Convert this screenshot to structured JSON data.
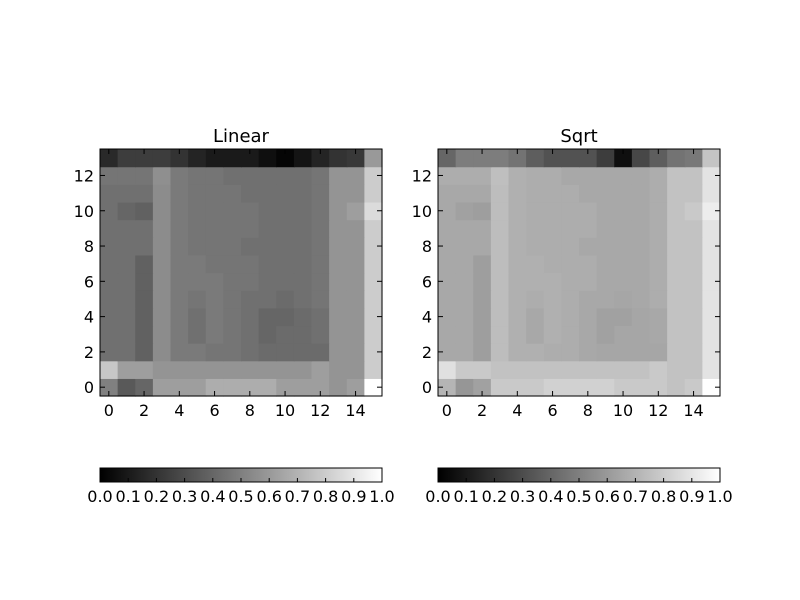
{
  "chart_data": [
    {
      "type": "heatmap",
      "title": "Linear",
      "xlabel": "",
      "ylabel": "",
      "x": [
        0,
        1,
        2,
        3,
        4,
        5,
        6,
        7,
        8,
        9,
        10,
        11,
        12,
        13,
        14,
        15
      ],
      "y": [
        0,
        1,
        2,
        3,
        4,
        5,
        6,
        7,
        8,
        9,
        10,
        11,
        12,
        13
      ],
      "xlim": [
        -0.5,
        15.5
      ],
      "ylim": [
        -0.5,
        13.5
      ],
      "xticks": [
        "0",
        "2",
        "4",
        "6",
        "8",
        "10",
        "12",
        "14"
      ],
      "yticks": [
        "0",
        "2",
        "4",
        "6",
        "8",
        "10",
        "12"
      ],
      "values": [
        [
          0.5,
          0.35,
          0.4,
          0.62,
          0.62,
          0.62,
          0.68,
          0.68,
          0.68,
          0.68,
          0.62,
          0.62,
          0.62,
          0.58,
          0.62,
          1.0
        ],
        [
          0.78,
          0.62,
          0.62,
          0.58,
          0.58,
          0.58,
          0.58,
          0.58,
          0.58,
          0.58,
          0.58,
          0.58,
          0.62,
          0.58,
          0.58,
          0.8
        ],
        [
          0.44,
          0.44,
          0.38,
          0.55,
          0.48,
          0.48,
          0.46,
          0.46,
          0.44,
          0.42,
          0.42,
          0.42,
          0.42,
          0.58,
          0.58,
          0.8
        ],
        [
          0.44,
          0.44,
          0.38,
          0.55,
          0.48,
          0.44,
          0.48,
          0.46,
          0.44,
          0.4,
          0.42,
          0.42,
          0.44,
          0.58,
          0.58,
          0.8
        ],
        [
          0.44,
          0.44,
          0.38,
          0.55,
          0.48,
          0.44,
          0.48,
          0.46,
          0.44,
          0.4,
          0.4,
          0.42,
          0.44,
          0.58,
          0.58,
          0.8
        ],
        [
          0.44,
          0.44,
          0.38,
          0.55,
          0.48,
          0.46,
          0.48,
          0.46,
          0.44,
          0.44,
          0.42,
          0.44,
          0.46,
          0.58,
          0.58,
          0.8
        ],
        [
          0.44,
          0.44,
          0.38,
          0.55,
          0.48,
          0.48,
          0.48,
          0.46,
          0.46,
          0.44,
          0.44,
          0.44,
          0.46,
          0.58,
          0.58,
          0.8
        ],
        [
          0.44,
          0.44,
          0.38,
          0.55,
          0.48,
          0.48,
          0.46,
          0.46,
          0.46,
          0.44,
          0.44,
          0.44,
          0.46,
          0.58,
          0.58,
          0.8
        ],
        [
          0.44,
          0.44,
          0.44,
          0.55,
          0.48,
          0.46,
          0.46,
          0.46,
          0.44,
          0.44,
          0.44,
          0.44,
          0.46,
          0.58,
          0.58,
          0.8
        ],
        [
          0.44,
          0.44,
          0.44,
          0.55,
          0.48,
          0.46,
          0.46,
          0.46,
          0.46,
          0.44,
          0.44,
          0.44,
          0.46,
          0.58,
          0.58,
          0.8
        ],
        [
          0.44,
          0.4,
          0.38,
          0.55,
          0.48,
          0.46,
          0.46,
          0.46,
          0.46,
          0.44,
          0.44,
          0.44,
          0.46,
          0.58,
          0.62,
          0.86
        ],
        [
          0.44,
          0.44,
          0.44,
          0.55,
          0.48,
          0.46,
          0.46,
          0.46,
          0.44,
          0.44,
          0.44,
          0.44,
          0.46,
          0.58,
          0.58,
          0.8
        ],
        [
          0.46,
          0.46,
          0.46,
          0.56,
          0.48,
          0.46,
          0.46,
          0.44,
          0.44,
          0.44,
          0.44,
          0.44,
          0.46,
          0.58,
          0.58,
          0.8
        ],
        [
          0.16,
          0.24,
          0.24,
          0.24,
          0.2,
          0.14,
          0.1,
          0.1,
          0.1,
          0.06,
          0.02,
          0.08,
          0.14,
          0.2,
          0.22,
          0.6
        ]
      ],
      "colormap": "gray",
      "colorbar": {
        "min": 0.0,
        "max": 1.0,
        "ticks": [
          "0.0",
          "0.1",
          "0.2",
          "0.3",
          "0.4",
          "0.5",
          "0.6",
          "0.7",
          "0.8",
          "0.9",
          "1.0"
        ]
      }
    },
    {
      "type": "heatmap",
      "title": "Sqrt",
      "xlabel": "",
      "ylabel": "",
      "x": [
        0,
        1,
        2,
        3,
        4,
        5,
        6,
        7,
        8,
        9,
        10,
        11,
        12,
        13,
        14,
        15
      ],
      "y": [
        0,
        1,
        2,
        3,
        4,
        5,
        6,
        7,
        8,
        9,
        10,
        11,
        12,
        13
      ],
      "xlim": [
        -0.5,
        15.5
      ],
      "ylim": [
        -0.5,
        13.5
      ],
      "xticks": [
        "0",
        "2",
        "4",
        "6",
        "8",
        "10",
        "12",
        "14"
      ],
      "yticks": [
        "0",
        "2",
        "4",
        "6",
        "8",
        "10",
        "12"
      ],
      "values": [
        [
          0.71,
          0.59,
          0.63,
          0.79,
          0.79,
          0.79,
          0.82,
          0.82,
          0.82,
          0.82,
          0.79,
          0.79,
          0.79,
          0.76,
          0.79,
          1.0
        ],
        [
          0.88,
          0.79,
          0.79,
          0.76,
          0.76,
          0.76,
          0.76,
          0.76,
          0.76,
          0.76,
          0.76,
          0.76,
          0.79,
          0.76,
          0.76,
          0.89
        ],
        [
          0.66,
          0.66,
          0.62,
          0.74,
          0.69,
          0.69,
          0.68,
          0.68,
          0.66,
          0.65,
          0.65,
          0.65,
          0.65,
          0.76,
          0.76,
          0.89
        ],
        [
          0.66,
          0.66,
          0.62,
          0.74,
          0.69,
          0.66,
          0.69,
          0.68,
          0.66,
          0.63,
          0.65,
          0.65,
          0.66,
          0.76,
          0.76,
          0.89
        ],
        [
          0.66,
          0.66,
          0.62,
          0.74,
          0.69,
          0.66,
          0.69,
          0.68,
          0.66,
          0.63,
          0.63,
          0.65,
          0.66,
          0.76,
          0.76,
          0.89
        ],
        [
          0.66,
          0.66,
          0.62,
          0.74,
          0.69,
          0.68,
          0.69,
          0.68,
          0.66,
          0.66,
          0.65,
          0.66,
          0.68,
          0.76,
          0.76,
          0.89
        ],
        [
          0.66,
          0.66,
          0.62,
          0.74,
          0.69,
          0.69,
          0.69,
          0.68,
          0.68,
          0.66,
          0.66,
          0.66,
          0.68,
          0.76,
          0.76,
          0.89
        ],
        [
          0.66,
          0.66,
          0.62,
          0.74,
          0.69,
          0.69,
          0.68,
          0.68,
          0.68,
          0.66,
          0.66,
          0.66,
          0.68,
          0.76,
          0.76,
          0.89
        ],
        [
          0.66,
          0.66,
          0.66,
          0.74,
          0.69,
          0.68,
          0.68,
          0.68,
          0.66,
          0.66,
          0.66,
          0.66,
          0.68,
          0.76,
          0.76,
          0.89
        ],
        [
          0.66,
          0.66,
          0.66,
          0.74,
          0.69,
          0.68,
          0.68,
          0.68,
          0.68,
          0.66,
          0.66,
          0.66,
          0.68,
          0.76,
          0.76,
          0.89
        ],
        [
          0.66,
          0.63,
          0.62,
          0.74,
          0.69,
          0.68,
          0.68,
          0.68,
          0.68,
          0.66,
          0.66,
          0.66,
          0.68,
          0.76,
          0.79,
          0.93
        ],
        [
          0.66,
          0.66,
          0.66,
          0.74,
          0.69,
          0.68,
          0.68,
          0.68,
          0.66,
          0.66,
          0.66,
          0.66,
          0.68,
          0.76,
          0.76,
          0.89
        ],
        [
          0.68,
          0.68,
          0.68,
          0.75,
          0.69,
          0.68,
          0.68,
          0.66,
          0.66,
          0.66,
          0.66,
          0.66,
          0.68,
          0.76,
          0.76,
          0.89
        ],
        [
          0.4,
          0.49,
          0.49,
          0.49,
          0.45,
          0.37,
          0.32,
          0.32,
          0.32,
          0.24,
          0.06,
          0.28,
          0.37,
          0.45,
          0.47,
          0.77
        ]
      ],
      "colormap": "gray",
      "colorbar": {
        "min": 0.0,
        "max": 1.0,
        "ticks": [
          "0.0",
          "0.1",
          "0.2",
          "0.3",
          "0.4",
          "0.5",
          "0.6",
          "0.7",
          "0.8",
          "0.9",
          "1.0"
        ]
      }
    }
  ]
}
